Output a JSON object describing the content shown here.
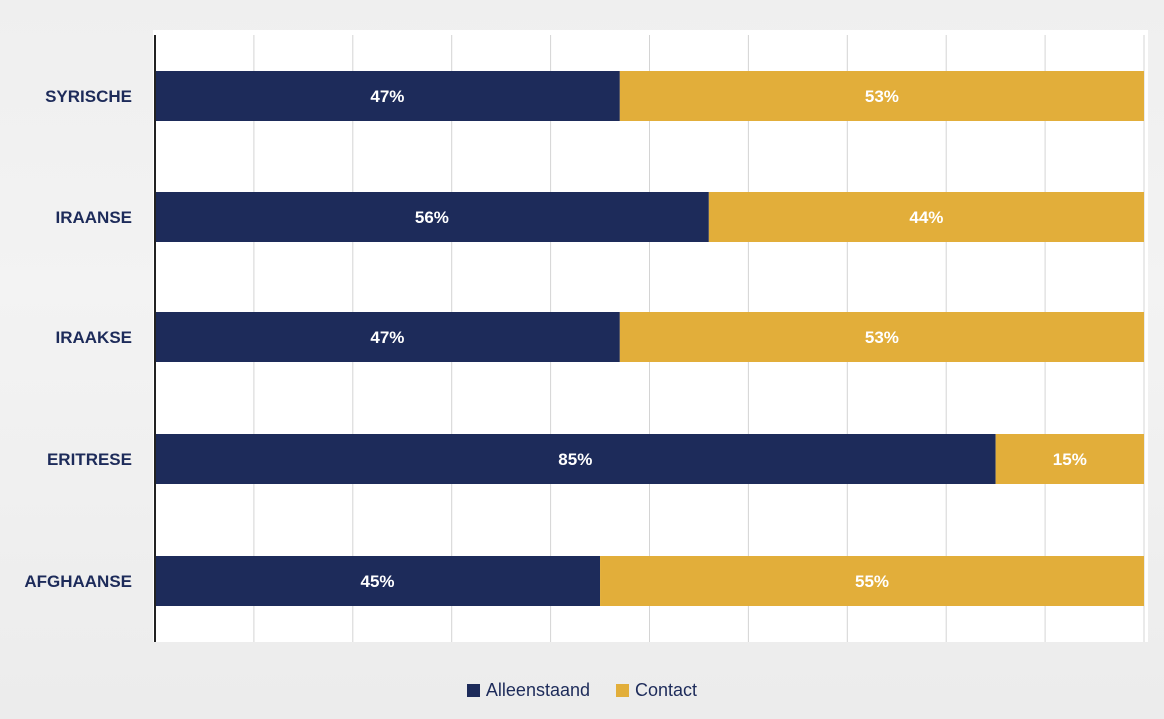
{
  "chart_data": {
    "type": "bar",
    "orientation": "horizontal",
    "stacked": true,
    "categories": [
      "SYRISCHE",
      "IRAANSE",
      "IRAAKSE",
      "ERITRESE",
      "AFGHAANSE"
    ],
    "series": [
      {
        "name": "Alleenstaand",
        "values": [
          47,
          56,
          47,
          85,
          45
        ],
        "labels": [
          "47%",
          "56%",
          "47%",
          "85%",
          "45%"
        ],
        "color": "#1d2b5a"
      },
      {
        "name": "Contact",
        "values": [
          53,
          44,
          53,
          15,
          55
        ],
        "labels": [
          "53%",
          "44%",
          "53%",
          "15%",
          "55%"
        ],
        "color": "#e2ae3a"
      }
    ],
    "xlim": [
      0,
      100
    ],
    "grid": true,
    "legend_position": "bottom"
  }
}
